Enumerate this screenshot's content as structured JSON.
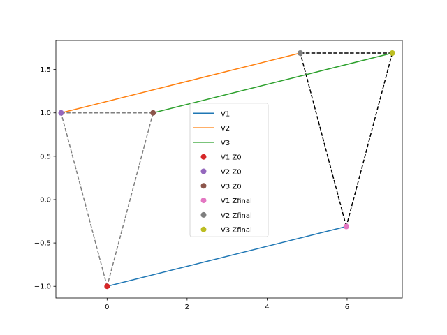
{
  "chart_data": {
    "type": "line",
    "title": "",
    "xlabel": "",
    "ylabel": "",
    "xlim": [
      -1.28,
      7.38
    ],
    "ylim": [
      -1.135,
      1.835
    ],
    "xticks": [
      0,
      2,
      4,
      6
    ],
    "yticks": [
      -1.0,
      -0.5,
      0.0,
      0.5,
      1.0,
      1.5
    ],
    "xtick_labels": [
      "0",
      "2",
      "4",
      "6"
    ],
    "ytick_labels": [
      "−1.0",
      "−0.5",
      "0.0",
      "0.5",
      "1.0",
      "1.5"
    ],
    "grid": false,
    "legend_position": "center",
    "series": [
      {
        "name": "V1",
        "kind": "line",
        "color": "#1f77b4",
        "points": [
          [
            0,
            -1.0
          ],
          [
            5.98,
            -0.31
          ]
        ]
      },
      {
        "name": "V2",
        "kind": "line",
        "color": "#ff7f0e",
        "points": [
          [
            -1.15,
            1.0
          ],
          [
            4.83,
            1.69
          ]
        ]
      },
      {
        "name": "V3",
        "kind": "line",
        "color": "#2ca02c",
        "points": [
          [
            1.15,
            1.0
          ],
          [
            7.13,
            1.69
          ]
        ]
      },
      {
        "name": "V1 Z0",
        "kind": "point",
        "color": "#d62728",
        "points": [
          [
            0,
            -1.0
          ]
        ]
      },
      {
        "name": "V2 Z0",
        "kind": "point",
        "color": "#9467bd",
        "points": [
          [
            -1.15,
            1.0
          ]
        ]
      },
      {
        "name": "V3 Z0",
        "kind": "point",
        "color": "#8c564b",
        "points": [
          [
            1.15,
            1.0
          ]
        ]
      },
      {
        "name": "V1 Zfinal",
        "kind": "point",
        "color": "#e377c2",
        "points": [
          [
            5.98,
            -0.31
          ]
        ]
      },
      {
        "name": "V2 Zfinal",
        "kind": "point",
        "color": "#7f7f7f",
        "points": [
          [
            4.83,
            1.69
          ]
        ]
      },
      {
        "name": "V3 Zfinal",
        "kind": "point",
        "color": "#bcbd22",
        "points": [
          [
            7.13,
            1.69
          ]
        ]
      }
    ],
    "triangles": [
      {
        "color": "#7f7f7f",
        "style": "dashed",
        "points": [
          [
            0,
            -1.0
          ],
          [
            -1.15,
            1.0
          ],
          [
            1.15,
            1.0
          ]
        ]
      },
      {
        "color": "#000000",
        "style": "dashed",
        "points": [
          [
            5.98,
            -0.31
          ],
          [
            4.83,
            1.69
          ],
          [
            7.13,
            1.69
          ]
        ]
      }
    ]
  }
}
